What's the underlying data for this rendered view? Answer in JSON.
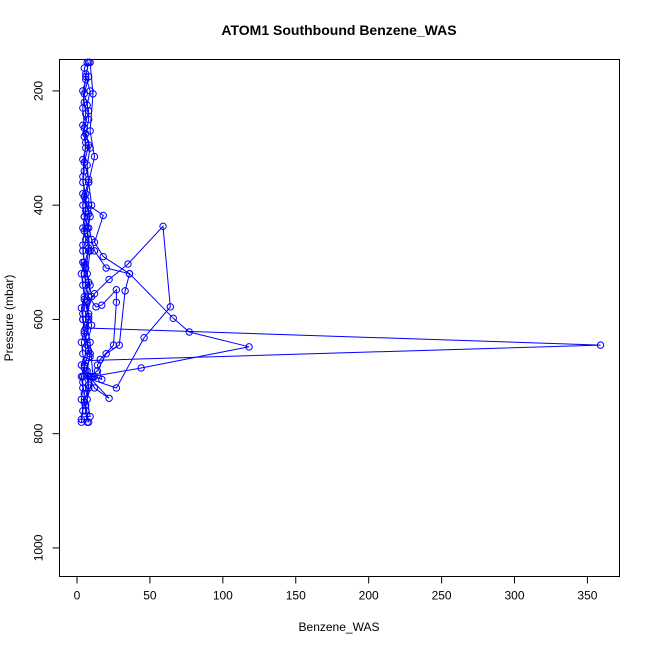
{
  "chart_data": {
    "type": "line",
    "title": "ATOM1 Southbound Benzene_WAS",
    "xlabel": "Benzene_WAS",
    "ylabel": "Pressure (mbar)",
    "xlim": [
      0,
      370
    ],
    "ylim": [
      1050,
      145
    ],
    "y_reversed": true,
    "x_ticks": [
      0,
      50,
      100,
      150,
      200,
      250,
      300,
      350
    ],
    "y_ticks": [
      200,
      400,
      600,
      800,
      1000
    ],
    "grid": false,
    "series_color": "#0000ff",
    "marker": "open-circle",
    "series": [
      {
        "values": [
          {
            "x": 3,
            "y": 780
          },
          {
            "x": 4,
            "y": 760
          },
          {
            "x": 3,
            "y": 740
          },
          {
            "x": 4,
            "y": 720
          },
          {
            "x": 3,
            "y": 700
          },
          {
            "x": 5,
            "y": 680
          },
          {
            "x": 4,
            "y": 660
          },
          {
            "x": 3,
            "y": 640
          },
          {
            "x": 5,
            "y": 620
          },
          {
            "x": 4,
            "y": 600
          },
          {
            "x": 3,
            "y": 580
          },
          {
            "x": 5,
            "y": 560
          },
          {
            "x": 4,
            "y": 540
          },
          {
            "x": 3,
            "y": 520
          },
          {
            "x": 5,
            "y": 500
          },
          {
            "x": 4,
            "y": 480
          },
          {
            "x": 6,
            "y": 460
          },
          {
            "x": 4,
            "y": 440
          },
          {
            "x": 5,
            "y": 420
          },
          {
            "x": 4,
            "y": 400
          },
          {
            "x": 6,
            "y": 380
          },
          {
            "x": 4,
            "y": 360
          },
          {
            "x": 5,
            "y": 340
          },
          {
            "x": 4,
            "y": 320
          },
          {
            "x": 6,
            "y": 300
          },
          {
            "x": 5,
            "y": 280
          },
          {
            "x": 4,
            "y": 260
          },
          {
            "x": 6,
            "y": 240
          },
          {
            "x": 5,
            "y": 220
          },
          {
            "x": 4,
            "y": 200
          },
          {
            "x": 6,
            "y": 180
          },
          {
            "x": 5,
            "y": 160
          },
          {
            "x": 7,
            "y": 150
          }
        ]
      },
      {
        "values": [
          {
            "x": 8,
            "y": 150
          },
          {
            "x": 6,
            "y": 175
          },
          {
            "x": 9,
            "y": 200
          },
          {
            "x": 7,
            "y": 225
          },
          {
            "x": 8,
            "y": 250
          },
          {
            "x": 6,
            "y": 275
          },
          {
            "x": 9,
            "y": 300
          },
          {
            "x": 7,
            "y": 330
          },
          {
            "x": 8,
            "y": 360
          },
          {
            "x": 6,
            "y": 390
          },
          {
            "x": 9,
            "y": 420
          },
          {
            "x": 7,
            "y": 450
          },
          {
            "x": 8,
            "y": 480
          },
          {
            "x": 6,
            "y": 510
          },
          {
            "x": 9,
            "y": 540
          },
          {
            "x": 7,
            "y": 570
          },
          {
            "x": 8,
            "y": 600
          },
          {
            "x": 6,
            "y": 630
          },
          {
            "x": 9,
            "y": 660
          },
          {
            "x": 7,
            "y": 690
          },
          {
            "x": 8,
            "y": 720
          },
          {
            "x": 6,
            "y": 750
          },
          {
            "x": 8,
            "y": 780
          }
        ]
      },
      {
        "values": [
          {
            "x": 3,
            "y": 775
          },
          {
            "x": 5,
            "y": 730
          },
          {
            "x": 9,
            "y": 700
          },
          {
            "x": 14,
            "y": 690
          },
          {
            "x": 20,
            "y": 660
          },
          {
            "x": 29,
            "y": 645
          },
          {
            "x": 33,
            "y": 550
          },
          {
            "x": 36,
            "y": 520
          },
          {
            "x": 20,
            "y": 510
          },
          {
            "x": 12,
            "y": 480
          },
          {
            "x": 10,
            "y": 460
          },
          {
            "x": 8,
            "y": 440
          },
          {
            "x": 5,
            "y": 420
          },
          {
            "x": 6,
            "y": 400
          },
          {
            "x": 4,
            "y": 380
          }
        ]
      },
      {
        "values": [
          {
            "x": 4,
            "y": 700
          },
          {
            "x": 12,
            "y": 700
          },
          {
            "x": 17,
            "y": 705
          },
          {
            "x": 14,
            "y": 680
          },
          {
            "x": 16,
            "y": 670
          },
          {
            "x": 25,
            "y": 645
          },
          {
            "x": 27,
            "y": 570
          },
          {
            "x": 27,
            "y": 548
          },
          {
            "x": 17,
            "y": 575
          },
          {
            "x": 13,
            "y": 578
          },
          {
            "x": 8,
            "y": 560
          },
          {
            "x": 6,
            "y": 540
          },
          {
            "x": 5,
            "y": 520
          },
          {
            "x": 4,
            "y": 500
          }
        ]
      },
      {
        "values": [
          {
            "x": 3,
            "y": 680
          },
          {
            "x": 6,
            "y": 672
          },
          {
            "x": 359,
            "y": 645
          },
          {
            "x": 6,
            "y": 615
          },
          {
            "x": 4,
            "y": 600
          }
        ]
      },
      {
        "values": [
          {
            "x": 4,
            "y": 700
          },
          {
            "x": 27,
            "y": 720
          },
          {
            "x": 46,
            "y": 632
          },
          {
            "x": 64,
            "y": 578
          },
          {
            "x": 59,
            "y": 437
          },
          {
            "x": 35,
            "y": 503
          },
          {
            "x": 22,
            "y": 530
          },
          {
            "x": 12,
            "y": 555
          },
          {
            "x": 6,
            "y": 580
          }
        ]
      },
      {
        "values": [
          {
            "x": 10,
            "y": 700
          },
          {
            "x": 44,
            "y": 685
          },
          {
            "x": 118,
            "y": 648
          },
          {
            "x": 77,
            "y": 622
          },
          {
            "x": 66,
            "y": 598
          },
          {
            "x": 36,
            "y": 520
          },
          {
            "x": 18,
            "y": 490
          },
          {
            "x": 12,
            "y": 465
          },
          {
            "x": 18,
            "y": 418
          },
          {
            "x": 8,
            "y": 400
          }
        ]
      },
      {
        "values": [
          {
            "x": 8,
            "y": 700
          },
          {
            "x": 22,
            "y": 738
          },
          {
            "x": 12,
            "y": 720
          },
          {
            "x": 6,
            "y": 690
          },
          {
            "x": 9,
            "y": 665
          },
          {
            "x": 7,
            "y": 645
          },
          {
            "x": 10,
            "y": 610
          },
          {
            "x": 8,
            "y": 590
          },
          {
            "x": 6,
            "y": 570
          }
        ]
      },
      {
        "values": [
          {
            "x": 5,
            "y": 770
          },
          {
            "x": 9,
            "y": 770
          },
          {
            "x": 7,
            "y": 740
          },
          {
            "x": 11,
            "y": 700
          },
          {
            "x": 9,
            "y": 640
          },
          {
            "x": 6,
            "y": 600
          },
          {
            "x": 10,
            "y": 560
          },
          {
            "x": 7,
            "y": 520
          },
          {
            "x": 9,
            "y": 480
          },
          {
            "x": 7,
            "y": 440
          },
          {
            "x": 10,
            "y": 400
          },
          {
            "x": 8,
            "y": 360
          },
          {
            "x": 12,
            "y": 315
          },
          {
            "x": 9,
            "y": 270
          },
          {
            "x": 11,
            "y": 205
          },
          {
            "x": 9,
            "y": 150
          }
        ]
      },
      {
        "values": [
          {
            "x": 6,
            "y": 760
          },
          {
            "x": 4,
            "y": 710
          },
          {
            "x": 6,
            "y": 650
          },
          {
            "x": 4,
            "y": 590
          },
          {
            "x": 6,
            "y": 530
          },
          {
            "x": 4,
            "y": 470
          },
          {
            "x": 6,
            "y": 410
          },
          {
            "x": 4,
            "y": 350
          },
          {
            "x": 6,
            "y": 290
          },
          {
            "x": 4,
            "y": 230
          },
          {
            "x": 6,
            "y": 170
          }
        ]
      },
      {
        "values": [
          {
            "x": 7,
            "y": 780
          },
          {
            "x": 5,
            "y": 745
          },
          {
            "x": 8,
            "y": 715
          },
          {
            "x": 5,
            "y": 685
          },
          {
            "x": 8,
            "y": 655
          },
          {
            "x": 5,
            "y": 625
          },
          {
            "x": 8,
            "y": 595
          },
          {
            "x": 5,
            "y": 565
          },
          {
            "x": 8,
            "y": 535
          },
          {
            "x": 5,
            "y": 505
          },
          {
            "x": 8,
            "y": 475
          },
          {
            "x": 5,
            "y": 445
          },
          {
            "x": 8,
            "y": 415
          },
          {
            "x": 5,
            "y": 385
          },
          {
            "x": 8,
            "y": 355
          },
          {
            "x": 5,
            "y": 325
          },
          {
            "x": 8,
            "y": 295
          },
          {
            "x": 5,
            "y": 265
          },
          {
            "x": 8,
            "y": 235
          },
          {
            "x": 5,
            "y": 205
          },
          {
            "x": 8,
            "y": 175
          }
        ]
      }
    ]
  }
}
